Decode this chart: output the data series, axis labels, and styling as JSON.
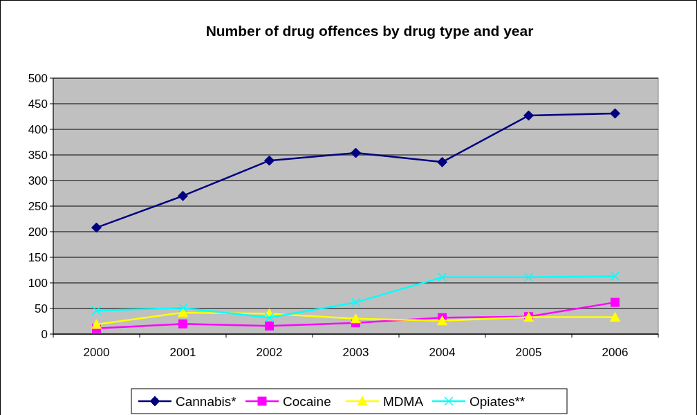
{
  "chart_data": {
    "type": "line",
    "title": "Number of drug offences by drug type and year",
    "categories": [
      "2000",
      "2001",
      "2002",
      "2003",
      "2004",
      "2005",
      "2006"
    ],
    "series": [
      {
        "name": "Cannabis*",
        "color": "#000080",
        "marker": "diamond",
        "values": [
          208,
          270,
          339,
          354,
          336,
          427,
          431
        ]
      },
      {
        "name": "Cocaine",
        "color": "#ff00ff",
        "marker": "square",
        "values": [
          11,
          20,
          16,
          22,
          32,
          34,
          62
        ]
      },
      {
        "name": "MDMA",
        "color": "#ffff00",
        "marker": "triangle",
        "values": [
          19,
          42,
          40,
          30,
          26,
          33,
          33
        ]
      },
      {
        "name": "Opiates**",
        "color": "#00ffff",
        "marker": "cross",
        "values": [
          46,
          51,
          32,
          62,
          111,
          111,
          113
        ]
      }
    ],
    "ylim": [
      0,
      500
    ],
    "yticks": [
      0,
      50,
      100,
      150,
      200,
      250,
      300,
      350,
      400,
      450,
      500
    ],
    "grid": "y",
    "legend": "bottom"
  }
}
